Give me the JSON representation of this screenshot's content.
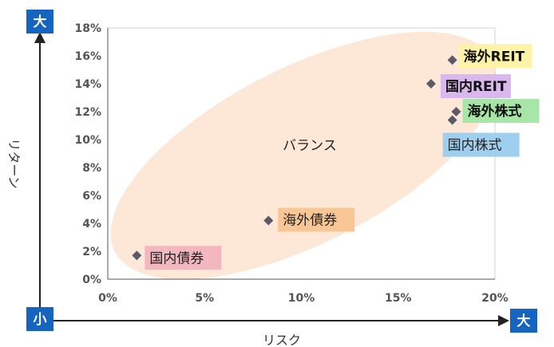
{
  "chart_data": {
    "type": "scatter",
    "title": "",
    "xlabel": "リスク",
    "ylabel": "リターン",
    "xlim": [
      0,
      20
    ],
    "ylim": [
      0,
      18
    ],
    "x_ticks": [
      "0%",
      "5%",
      "10%",
      "15%",
      "20%"
    ],
    "y_ticks": [
      "0%",
      "2%",
      "4%",
      "6%",
      "8%",
      "10%",
      "12%",
      "14%",
      "16%",
      "18%"
    ],
    "grid": false,
    "annotation": "バランス",
    "corner_labels": {
      "y_high": "大",
      "origin": "小",
      "x_high": "大"
    },
    "points": [
      {
        "label": "国内債券",
        "x": 1.5,
        "y": 1.7,
        "color": "#f4b6bf"
      },
      {
        "label": "海外債券",
        "x": 8.3,
        "y": 4.2,
        "color": "#f9c795"
      },
      {
        "label": "国内株式",
        "x": 17.8,
        "y": 11.4,
        "color": "#9fcfee"
      },
      {
        "label": "海外株式",
        "x": 18.0,
        "y": 12.0,
        "color": "#a8e6a8"
      },
      {
        "label": "国内REIT",
        "x": 16.7,
        "y": 14.0,
        "color": "#d9b8ee"
      },
      {
        "label": "海外REIT",
        "x": 17.8,
        "y": 15.7,
        "color": "#fff3a8"
      }
    ],
    "colors": {
      "marker": "#5a5a68",
      "axis": "#222222",
      "badge": "#1565c0",
      "ellipse": "#fde4d0"
    }
  }
}
